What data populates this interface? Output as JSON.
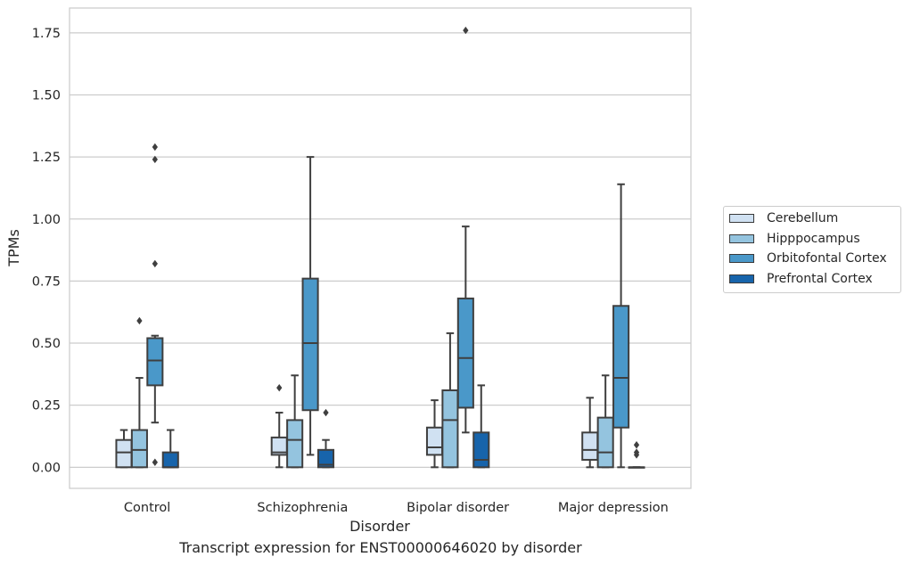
{
  "chart_data": {
    "type": "box",
    "title": "",
    "caption": "Transcript expression for ENST00000646020 by disorder",
    "xlabel": "Disorder",
    "ylabel": "TPMs",
    "ylim": [
      -0.085,
      1.85
    ],
    "yticks": [
      "0.00",
      "0.25",
      "0.50",
      "0.75",
      "1.00",
      "1.25",
      "1.50",
      "1.75"
    ],
    "grid": "horizontal",
    "legend_position": "right",
    "categories": [
      "Control",
      "Schizophrenia",
      "Bipolar disorder",
      "Major depression"
    ],
    "series": [
      {
        "name": "Cerebellum",
        "color": "#d0e1f2",
        "boxes": [
          {
            "whislo": 0.0,
            "q1": 0.0,
            "med": 0.06,
            "q3": 0.11,
            "whishi": 0.15,
            "fliers": []
          },
          {
            "whislo": 0.0,
            "q1": 0.05,
            "med": 0.06,
            "q3": 0.12,
            "whishi": 0.22,
            "fliers": [
              0.32
            ]
          },
          {
            "whislo": 0.0,
            "q1": 0.05,
            "med": 0.08,
            "q3": 0.16,
            "whishi": 0.27,
            "fliers": []
          },
          {
            "whislo": 0.0,
            "q1": 0.03,
            "med": 0.07,
            "q3": 0.14,
            "whishi": 0.28,
            "fliers": []
          }
        ]
      },
      {
        "name": "Hipppocampus",
        "color": "#94c4df",
        "boxes": [
          {
            "whislo": 0.0,
            "q1": 0.0,
            "med": 0.07,
            "q3": 0.15,
            "whishi": 0.36,
            "fliers": [
              0.59
            ]
          },
          {
            "whislo": 0.0,
            "q1": 0.0,
            "med": 0.11,
            "q3": 0.19,
            "whishi": 0.37,
            "fliers": []
          },
          {
            "whislo": 0.0,
            "q1": 0.0,
            "med": 0.19,
            "q3": 0.31,
            "whishi": 0.54,
            "fliers": []
          },
          {
            "whislo": 0.0,
            "q1": 0.0,
            "med": 0.06,
            "q3": 0.2,
            "whishi": 0.37,
            "fliers": []
          }
        ]
      },
      {
        "name": "Orbitofontal Cortex",
        "color": "#4a98c9",
        "boxes": [
          {
            "whislo": 0.18,
            "q1": 0.33,
            "med": 0.43,
            "q3": 0.52,
            "whishi": 0.53,
            "fliers": [
              0.02,
              0.82,
              1.24,
              1.29
            ]
          },
          {
            "whislo": 0.05,
            "q1": 0.23,
            "med": 0.5,
            "q3": 0.76,
            "whishi": 1.25,
            "fliers": []
          },
          {
            "whislo": 0.14,
            "q1": 0.24,
            "med": 0.44,
            "q3": 0.68,
            "whishi": 0.97,
            "fliers": [
              1.76
            ]
          },
          {
            "whislo": 0.0,
            "q1": 0.16,
            "med": 0.36,
            "q3": 0.65,
            "whishi": 1.14,
            "fliers": []
          }
        ]
      },
      {
        "name": "Prefrontal Cortex",
        "color": "#1764ab",
        "boxes": [
          {
            "whislo": 0.0,
            "q1": 0.0,
            "med": 0.0,
            "q3": 0.06,
            "whishi": 0.15,
            "fliers": []
          },
          {
            "whislo": 0.0,
            "q1": 0.0,
            "med": 0.01,
            "q3": 0.07,
            "whishi": 0.11,
            "fliers": [
              0.22
            ]
          },
          {
            "whislo": 0.0,
            "q1": 0.0,
            "med": 0.03,
            "q3": 0.14,
            "whishi": 0.33,
            "fliers": []
          },
          {
            "whislo": 0.0,
            "q1": 0.0,
            "med": 0.0,
            "q3": 0.0,
            "whishi": 0.0,
            "fliers": [
              0.05,
              0.06,
              0.09
            ]
          }
        ]
      }
    ]
  }
}
